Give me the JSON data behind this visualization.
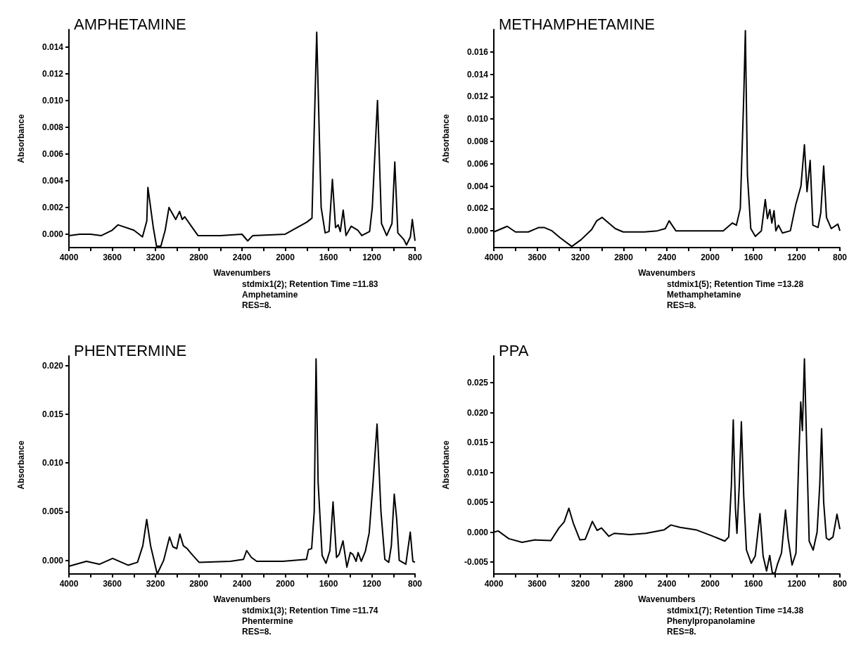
{
  "chart_data": [
    {
      "type": "line",
      "title": "AMPHETAMINE",
      "xlabel": "Wavenumbers",
      "ylabel": "Absorbance",
      "annotations": [
        "stdmix1(2); Retention Time =11.83",
        "Amphetamine",
        "RES=8."
      ],
      "color": "#000000",
      "xlim": [
        4000,
        800
      ],
      "xticks": [
        4000,
        {
          "value": 3800,
          "label": null
        },
        3600,
        {
          "value": 3400,
          "label": null
        },
        3200,
        {
          "value": 3000,
          "label": null
        },
        2800,
        {
          "value": 2600,
          "label": null
        },
        2400,
        {
          "value": 2200,
          "label": null
        },
        2000,
        {
          "value": 1800,
          "label": null
        },
        1600,
        {
          "value": 1400,
          "label": null
        },
        1200,
        {
          "value": 1000,
          "label": null
        },
        800
      ],
      "ylim": [
        -0.001,
        0.0153
      ],
      "yticks": [
        {
          "value": 0,
          "label": "0.000"
        },
        0.002,
        0.004,
        0.006,
        0.008,
        {
          "value": 0.01,
          "label": "0.010"
        },
        0.012,
        0.014
      ],
      "x": [
        4000,
        3900,
        3800,
        3700,
        3600,
        3547,
        3400,
        3320,
        3280,
        3270,
        3220,
        3190,
        3150,
        3110,
        3075,
        3013,
        2977,
        2953,
        2929,
        2868,
        2807,
        2600,
        2400,
        2347,
        2300,
        2000,
        1801,
        1753,
        1709,
        1668,
        1631,
        1595,
        1564,
        1535,
        1510,
        1491,
        1464,
        1438,
        1390,
        1329,
        1292,
        1220,
        1195,
        1147,
        1110,
        1062,
        1013,
        987,
        959,
        903,
        879,
        843,
        825,
        800
      ],
      "values": [
        -0.0001,
        0.0,
        0.0,
        -0.0001,
        0.0003,
        0.0007,
        0.0003,
        -0.0002,
        0.001,
        0.0035,
        0.0005,
        -0.0009,
        -0.0009,
        0.0003,
        0.002,
        0.0011,
        0.0017,
        0.0011,
        0.0013,
        0.0006,
        -0.0001,
        -0.0001,
        0.0,
        -0.0005,
        -0.0001,
        0.0,
        0.0009,
        0.0012,
        0.0151,
        0.002,
        0.0001,
        0.0002,
        0.0041,
        0.0005,
        0.0007,
        0.0002,
        0.0018,
        -0.0001,
        0.0006,
        0.0003,
        -0.0001,
        0.0002,
        0.002,
        0.01,
        0.0008,
        -0.0001,
        0.0008,
        0.0054,
        0.0001,
        -0.0004,
        -0.0008,
        -0.0002,
        0.0011,
        -0.0005
      ]
    },
    {
      "type": "line",
      "title": "METHAMPHETAMINE",
      "xlabel": "Wavenumbers",
      "ylabel": "Absorbance",
      "annotations": [
        "stdmix1(5); Retention Time =13.28",
        "Methamphetamine",
        "RES=8."
      ],
      "color": "#000000",
      "xlim": [
        4000,
        800
      ],
      "xticks": [
        4000,
        {
          "value": 3800,
          "label": null
        },
        3600,
        {
          "value": 3400,
          "label": null
        },
        3200,
        {
          "value": 3000,
          "label": null
        },
        2800,
        {
          "value": 2600,
          "label": null
        },
        2400,
        {
          "value": 2200,
          "label": null
        },
        2000,
        {
          "value": 1800,
          "label": null
        },
        1600,
        {
          "value": 1400,
          "label": null
        },
        1200,
        {
          "value": 1000,
          "label": null
        },
        800
      ],
      "ylim": [
        -0.0015,
        0.018
      ],
      "yticks": [
        {
          "value": 0,
          "label": "0.000"
        },
        0.002,
        0.004,
        0.006,
        0.008,
        {
          "value": 0.01,
          "label": "0.010"
        },
        0.012,
        0.014,
        0.016
      ],
      "x": [
        4000,
        3876,
        3800,
        3681,
        3584,
        3535,
        3462,
        3389,
        3279,
        3194,
        3096,
        3048,
        2999,
        2950,
        2877,
        2804,
        2609,
        2488,
        2415,
        2379,
        2317,
        2122,
        1879,
        1794,
        1757,
        1721,
        1689,
        1674,
        1655,
        1624,
        1582,
        1526,
        1490,
        1470,
        1448,
        1429,
        1409,
        1392,
        1368,
        1331,
        1258,
        1209,
        1160,
        1128,
        1104,
        1075,
        1050,
        1002,
        977,
        950,
        924,
        880,
        819,
        800
      ],
      "values": [
        -0.0001,
        0.0004,
        -0.0001,
        -0.0001,
        0.0003,
        0.0003,
        0.0,
        -0.0006,
        -0.0014,
        -0.0008,
        0.0001,
        0.0009,
        0.0012,
        0.0008,
        0.0002,
        -0.0001,
        -0.0001,
        0.0,
        0.0002,
        0.0009,
        0.0,
        0.0,
        0.0,
        0.0007,
        0.0005,
        0.002,
        0.012,
        0.0179,
        0.005,
        0.0002,
        -0.0005,
        0.0,
        0.0028,
        0.0011,
        0.0019,
        0.0007,
        0.0018,
        0.0,
        0.0005,
        -0.0002,
        0.0,
        0.0023,
        0.004,
        0.0077,
        0.0035,
        0.0063,
        0.0005,
        0.0003,
        0.0016,
        0.0058,
        0.0012,
        0.0002,
        0.0006,
        0.0
      ]
    },
    {
      "type": "line",
      "title": "PHENTERMINE",
      "xlabel": "Wavenumbers",
      "ylabel": "Absorbance",
      "annotations": [
        "stdmix1(3); Retention Time =11.74",
        "Phentermine",
        "RES=8."
      ],
      "color": "#000000",
      "xlim": [
        4000,
        800
      ],
      "xticks": [
        4000,
        {
          "value": 3800,
          "label": null
        },
        3600,
        {
          "value": 3400,
          "label": null
        },
        3200,
        {
          "value": 3000,
          "label": null
        },
        2800,
        {
          "value": 2600,
          "label": null
        },
        2400,
        {
          "value": 2200,
          "label": null
        },
        2000,
        {
          "value": 1800,
          "label": null
        },
        1600,
        {
          "value": 1400,
          "label": null
        },
        1200,
        {
          "value": 1000,
          "label": null
        },
        800
      ],
      "ylim": [
        -0.0014,
        0.021
      ],
      "yticks": [
        {
          "value": 0,
          "label": "0.000"
        },
        0.005,
        {
          "value": 0.01,
          "label": "0.010"
        },
        0.015,
        {
          "value": 0.02,
          "label": "0.020"
        }
      ],
      "x": [
        4000,
        3838,
        3717,
        3596,
        3451,
        3366,
        3317,
        3281,
        3245,
        3184,
        3124,
        3070,
        3039,
        3003,
        2974,
        2942,
        2906,
        2870,
        2797,
        2507,
        2386,
        2357,
        2313,
        2264,
        2022,
        1804,
        1785,
        1756,
        1732,
        1715,
        1696,
        1659,
        1623,
        1587,
        1558,
        1526,
        1502,
        1466,
        1430,
        1398,
        1374,
        1345,
        1326,
        1297,
        1260,
        1224,
        1188,
        1151,
        1115,
        1079,
        1043,
        1019,
        992,
        970,
        946,
        885,
        844,
        820,
        800
      ],
      "values": [
        -0.0006,
        -0.0001,
        -0.0004,
        0.0002,
        -0.0005,
        -0.0002,
        0.0015,
        0.0042,
        0.0015,
        -0.0014,
        0.0,
        0.0024,
        0.0014,
        0.0012,
        0.0027,
        0.0015,
        0.0012,
        0.0007,
        -0.0002,
        -0.0001,
        0.0001,
        0.001,
        0.0003,
        -0.0001,
        -0.0001,
        0.0001,
        0.0011,
        0.0012,
        0.005,
        0.0207,
        0.008,
        0.0005,
        -0.0003,
        0.001,
        0.006,
        0.0003,
        0.0006,
        0.002,
        -0.0007,
        0.0008,
        0.0006,
        -0.0001,
        0.0008,
        -0.0001,
        0.0009,
        0.0028,
        0.008,
        0.014,
        0.005,
        0.0001,
        -0.0002,
        0.0015,
        0.0068,
        0.0043,
        0.0,
        -0.0004,
        0.0029,
        -0.0001,
        -0.0002
      ]
    },
    {
      "type": "line",
      "title": "PPA",
      "xlabel": "Wavenumbers",
      "ylabel": "Absorbance",
      "annotations": [
        "stdmix1(7); Retention Time =14.38",
        "Phenylpropanolamine",
        "RES=8."
      ],
      "color": "#000000",
      "xlim": [
        4000,
        800
      ],
      "xticks": [
        4000,
        {
          "value": 3800,
          "label": null
        },
        3600,
        {
          "value": 3400,
          "label": null
        },
        3200,
        {
          "value": 3000,
          "label": null
        },
        2800,
        {
          "value": 2600,
          "label": null
        },
        2400,
        {
          "value": 2200,
          "label": null
        },
        2000,
        {
          "value": 1800,
          "label": null
        },
        1600,
        {
          "value": 1400,
          "label": null
        },
        1200,
        {
          "value": 1000,
          "label": null
        },
        800
      ],
      "ylim": [
        -0.007,
        0.0295
      ],
      "yticks": [
        -0.005,
        {
          "value": 0,
          "label": "0.000"
        },
        0.005,
        {
          "value": 0.01,
          "label": "0.010"
        },
        0.015,
        {
          "value": 0.02,
          "label": "0.020"
        },
        0.025
      ],
      "x": [
        4000,
        3959,
        3861,
        3739,
        3618,
        3472,
        3398,
        3350,
        3306,
        3265,
        3204,
        3155,
        3089,
        3045,
        3004,
        2936,
        2887,
        2741,
        2595,
        2424,
        2363,
        2278,
        2132,
        1986,
        1864,
        1828,
        1803,
        1786,
        1766,
        1752,
        1730,
        1711,
        1689,
        1664,
        1620,
        1583,
        1539,
        1510,
        1478,
        1449,
        1425,
        1401,
        1376,
        1340,
        1303,
        1279,
        1242,
        1206,
        1181,
        1162,
        1147,
        1128,
        1108,
        1084,
        1047,
        1011,
        986,
        969,
        950,
        925,
        900,
        864,
        827,
        800
      ],
      "values": [
        0.0,
        0.0002,
        -0.0011,
        -0.0017,
        -0.0013,
        -0.0014,
        0.0007,
        0.0017,
        0.004,
        0.0015,
        -0.0013,
        -0.0012,
        0.0018,
        0.0003,
        0.0007,
        -0.0007,
        -0.0002,
        -0.0004,
        -0.0002,
        0.0004,
        0.0012,
        0.0008,
        0.0004,
        -0.0006,
        -0.0015,
        -0.0008,
        0.008,
        0.0188,
        0.004,
        -0.0002,
        0.008,
        0.0185,
        0.006,
        -0.003,
        -0.0052,
        -0.004,
        0.0031,
        -0.004,
        -0.0065,
        -0.0039,
        -0.0068,
        -0.0069,
        -0.0053,
        -0.0035,
        0.0037,
        -0.001,
        -0.0055,
        -0.0035,
        0.012,
        0.0218,
        0.017,
        0.029,
        0.015,
        -0.0015,
        -0.003,
        0.0,
        0.008,
        0.0173,
        0.005,
        -0.001,
        -0.0013,
        -0.0008,
        0.003,
        0.0005
      ]
    }
  ]
}
